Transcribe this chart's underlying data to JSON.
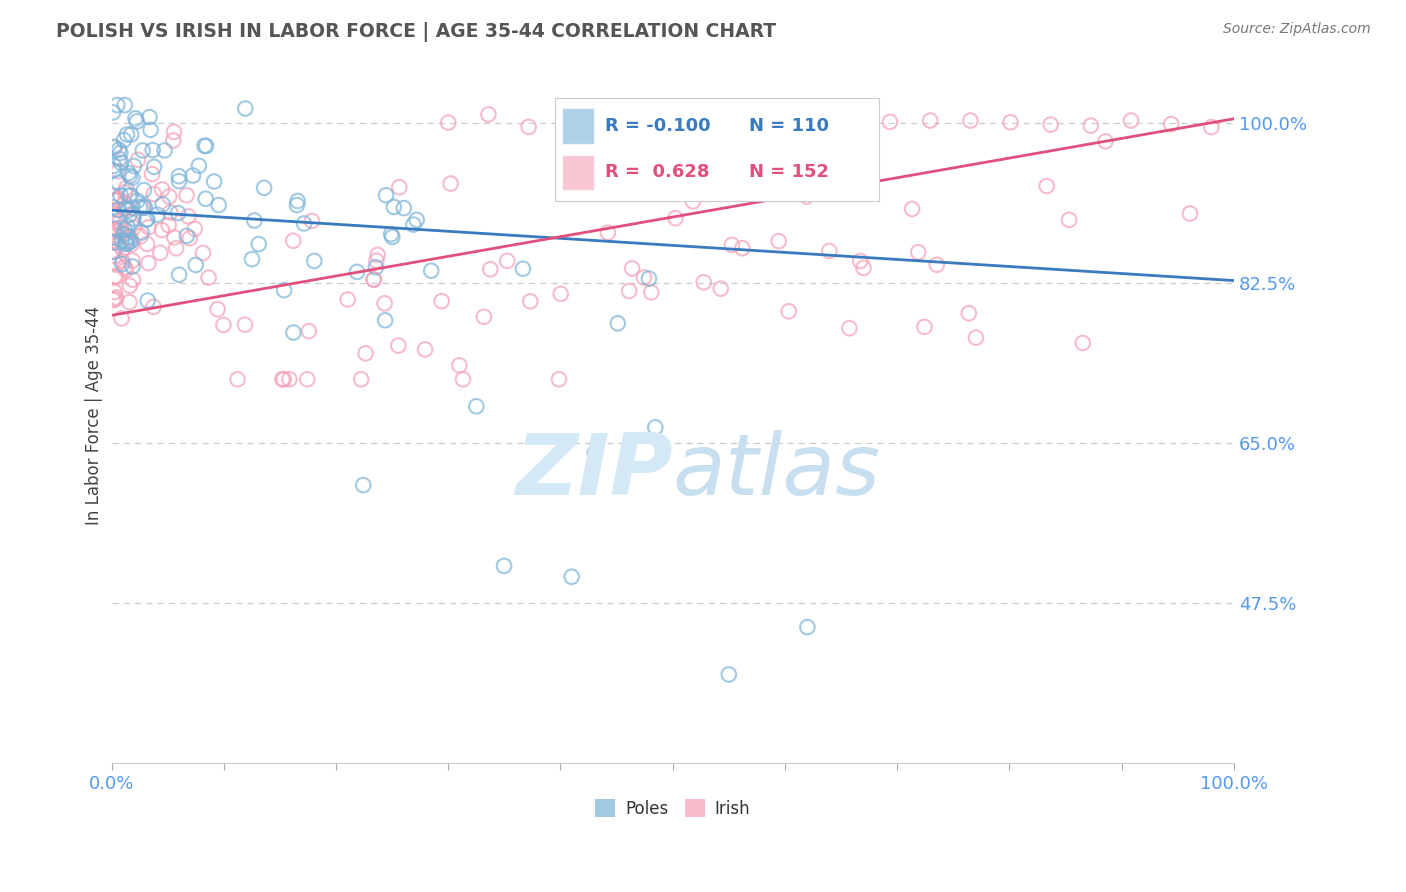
{
  "title": "POLISH VS IRISH IN LABOR FORCE | AGE 35-44 CORRELATION CHART",
  "source_text": "Source: ZipAtlas.com",
  "ylabel": "In Labor Force | Age 35-44",
  "xlim": [
    0.0,
    1.0
  ],
  "ylim": [
    0.3,
    1.06
  ],
  "yticks": [
    0.475,
    0.65,
    0.825,
    1.0
  ],
  "ytick_labels": [
    "47.5%",
    "65.0%",
    "82.5%",
    "100.0%"
  ],
  "xtick_labels_pos": [
    0.0,
    1.0
  ],
  "xtick_labels": [
    "0.0%",
    "100.0%"
  ],
  "blue_R": -0.1,
  "blue_N": 110,
  "pink_R": 0.628,
  "pink_N": 152,
  "blue_color": "#7ab3d8",
  "pink_color": "#f4a0b5",
  "blue_line_color": "#3a7abf",
  "pink_line_color": "#e0507a",
  "axis_tick_color": "#5599ee",
  "watermark_color": "#d5e8f5",
  "legend_label_blue": "Poles",
  "legend_label_pink": "Irish",
  "background_color": "#ffffff",
  "grid_color": "#cccccc",
  "blue_trend_y0": 0.905,
  "blue_trend_y1": 0.828,
  "pink_trend_y0": 0.79,
  "pink_trend_y1": 1.005
}
